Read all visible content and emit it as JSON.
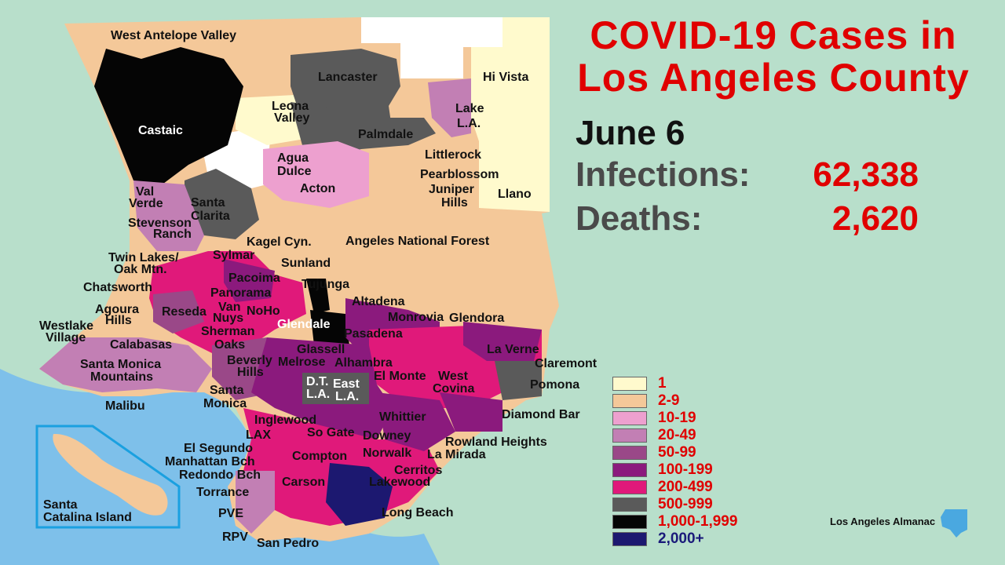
{
  "title_line1": "COVID-19 Cases in",
  "title_line2": "Los Angeles County",
  "date": "June 6",
  "infections_label": "Infections:",
  "infections_value": "62,338",
  "deaths_label": "Deaths:",
  "deaths_value": "2,620",
  "credit": "Los Angeles Almanac",
  "legend": [
    {
      "label": "1",
      "color": "#fffacd"
    },
    {
      "label": "2-9",
      "color": "#f4c899"
    },
    {
      "label": "10-19",
      "color": "#eda0cf"
    },
    {
      "label": "20-49",
      "color": "#c27fb4"
    },
    {
      "label": "50-99",
      "color": "#9a4888"
    },
    {
      "label": "100-199",
      "color": "#8b1a7d"
    },
    {
      "label": "200-499",
      "color": "#e0197a"
    },
    {
      "label": "500-999",
      "color": "#5a5a5a"
    },
    {
      "label": "1,000-1,999",
      "color": "#050505"
    },
    {
      "label": "2,000+",
      "color": "#1c1870"
    }
  ],
  "places": {
    "west_antelope_valley": "West Antelope Valley",
    "hi_vista": "Hi Vista",
    "lancaster": "Lancaster",
    "castaic": "Castaic",
    "leona": "Leona",
    "valley": "Valley",
    "lake": "Lake",
    "la": "L.A.",
    "palmdale": "Palmdale",
    "littlerock": "Littlerock",
    "agua": "Agua",
    "dulce": "Dulce",
    "pearblossom": "Pearblossom",
    "juniper": "Juniper",
    "hills": "Hills",
    "llano": "Llano",
    "acton": "Acton",
    "val": "Val",
    "verde": "Verde",
    "santa": "Santa",
    "clarita": "Clarita",
    "stevenson": "Stevenson",
    "ranch": "Ranch",
    "kagel": "Kagel Cyn.",
    "anf": "Angeles National Forest",
    "twin": "Twin Lakes/",
    "oak": "Oak Mtn.",
    "sylmar": "Sylmar",
    "sunland": "Sunland",
    "chatsworth": "Chatsworth",
    "pacoima": "Pacoima",
    "tujunga": "Tujunga",
    "panorama": "Panorama",
    "altadena": "Altadena",
    "agoura": "Agoura",
    "reseda": "Reseda",
    "van": "Van",
    "nuys": "Nuys",
    "noho": "NoHo",
    "glendale": "Glendale",
    "monrovia": "Monrovia",
    "glendora": "Glendora",
    "westlake": "Westlake",
    "village": "Village",
    "sherman": "Sherman",
    "oaks": "Oaks",
    "pasadena": "Pasadena",
    "la_verne": "La Verne",
    "calabasas": "Calabasas",
    "glassell": "Glassell",
    "beverly": "Beverly",
    "melrose": "Melrose",
    "alhambra": "Alhambra",
    "claremont": "Claremont",
    "smm1": "Santa Monica",
    "smm2": "Mountains",
    "el_monte": "El Monte",
    "west": "West",
    "dt": "D.T.",
    "east": "East",
    "covina": "Covina",
    "pomona": "Pomona",
    "monica": "Monica",
    "malibu": "Malibu",
    "whittier": "Whittier",
    "diamond": "Diamond Bar",
    "inglewood": "Inglewood",
    "lax": "LAX",
    "so_gate": "So Gate",
    "downey": "Downey",
    "rowland": "Rowland Heights",
    "el_segundo": "El Segundo",
    "manhattan": "Manhattan Bch",
    "compton": "Compton",
    "norwalk": "Norwalk",
    "la_mirada": "La Mirada",
    "redondo": "Redondo Bch",
    "cerritos": "Cerritos",
    "carson": "Carson",
    "lakewood": "Lakewood",
    "torrance": "Torrance",
    "long_beach": "Long Beach",
    "pve": "PVE",
    "catalina1": "Santa",
    "catalina2": "Catalina Island",
    "rpv": "RPV",
    "san_pedro": "San Pedro"
  }
}
